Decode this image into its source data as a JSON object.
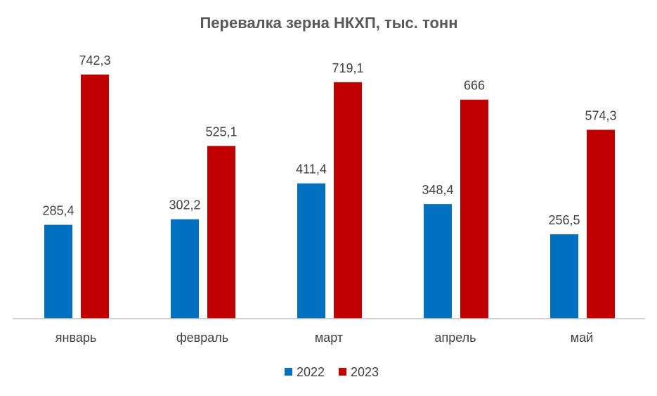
{
  "chart_data": {
    "type": "bar",
    "title": "Перевалка зерна НКХП, тыс. тонн",
    "categories": [
      "январь",
      "февраль",
      "март",
      "апрель",
      "май"
    ],
    "series": [
      {
        "name": "2022",
        "color": "#0070C0",
        "values": [
          285.4,
          302.2,
          411.4,
          348.4,
          256.5
        ],
        "labels": [
          "285,4",
          "302,2",
          "411,4",
          "348,4",
          "256,5"
        ]
      },
      {
        "name": "2023",
        "color": "#C00000",
        "values": [
          742.3,
          525.1,
          719.1,
          666,
          574.3
        ],
        "labels": [
          "742,3",
          "525,1",
          "719,1",
          "666",
          "574,3"
        ]
      }
    ],
    "xlabel": "",
    "ylabel": "",
    "ylim": [
      0,
      800
    ],
    "grid": false,
    "legend_position": "bottom"
  }
}
